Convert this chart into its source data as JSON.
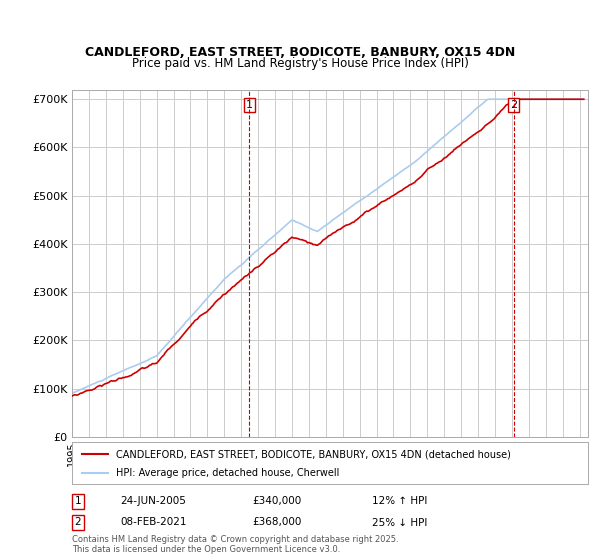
{
  "title_line1": "CANDLEFORD, EAST STREET, BODICOTE, BANBURY, OX15 4DN",
  "title_line2": "Price paid vs. HM Land Registry's House Price Index (HPI)",
  "ylim": [
    0,
    720000
  ],
  "yticks": [
    0,
    100000,
    200000,
    300000,
    400000,
    500000,
    600000,
    700000
  ],
  "ytick_labels": [
    "£0",
    "£100K",
    "£200K",
    "£300K",
    "£400K",
    "£500K",
    "£600K",
    "£700K"
  ],
  "xmin": 1995.0,
  "xmax": 2025.5,
  "bg_color": "#ffffff",
  "grid_color": "#cccccc",
  "red_color": "#cc0000",
  "blue_color": "#aaccee",
  "marker1_x": 2005.48,
  "marker2_x": 2021.1,
  "marker1_label": "1",
  "marker2_label": "2",
  "legend_line1": "CANDLEFORD, EAST STREET, BODICOTE, BANBURY, OX15 4DN (detached house)",
  "legend_line2": "HPI: Average price, detached house, Cherwell",
  "ann1_num": "1",
  "ann1_date": "24-JUN-2005",
  "ann1_price": "£340,000",
  "ann1_hpi": "12% ↑ HPI",
  "ann2_num": "2",
  "ann2_date": "08-FEB-2021",
  "ann2_price": "£368,000",
  "ann2_hpi": "25% ↓ HPI",
  "footer": "Contains HM Land Registry data © Crown copyright and database right 2025.\nThis data is licensed under the Open Government Licence v3.0."
}
